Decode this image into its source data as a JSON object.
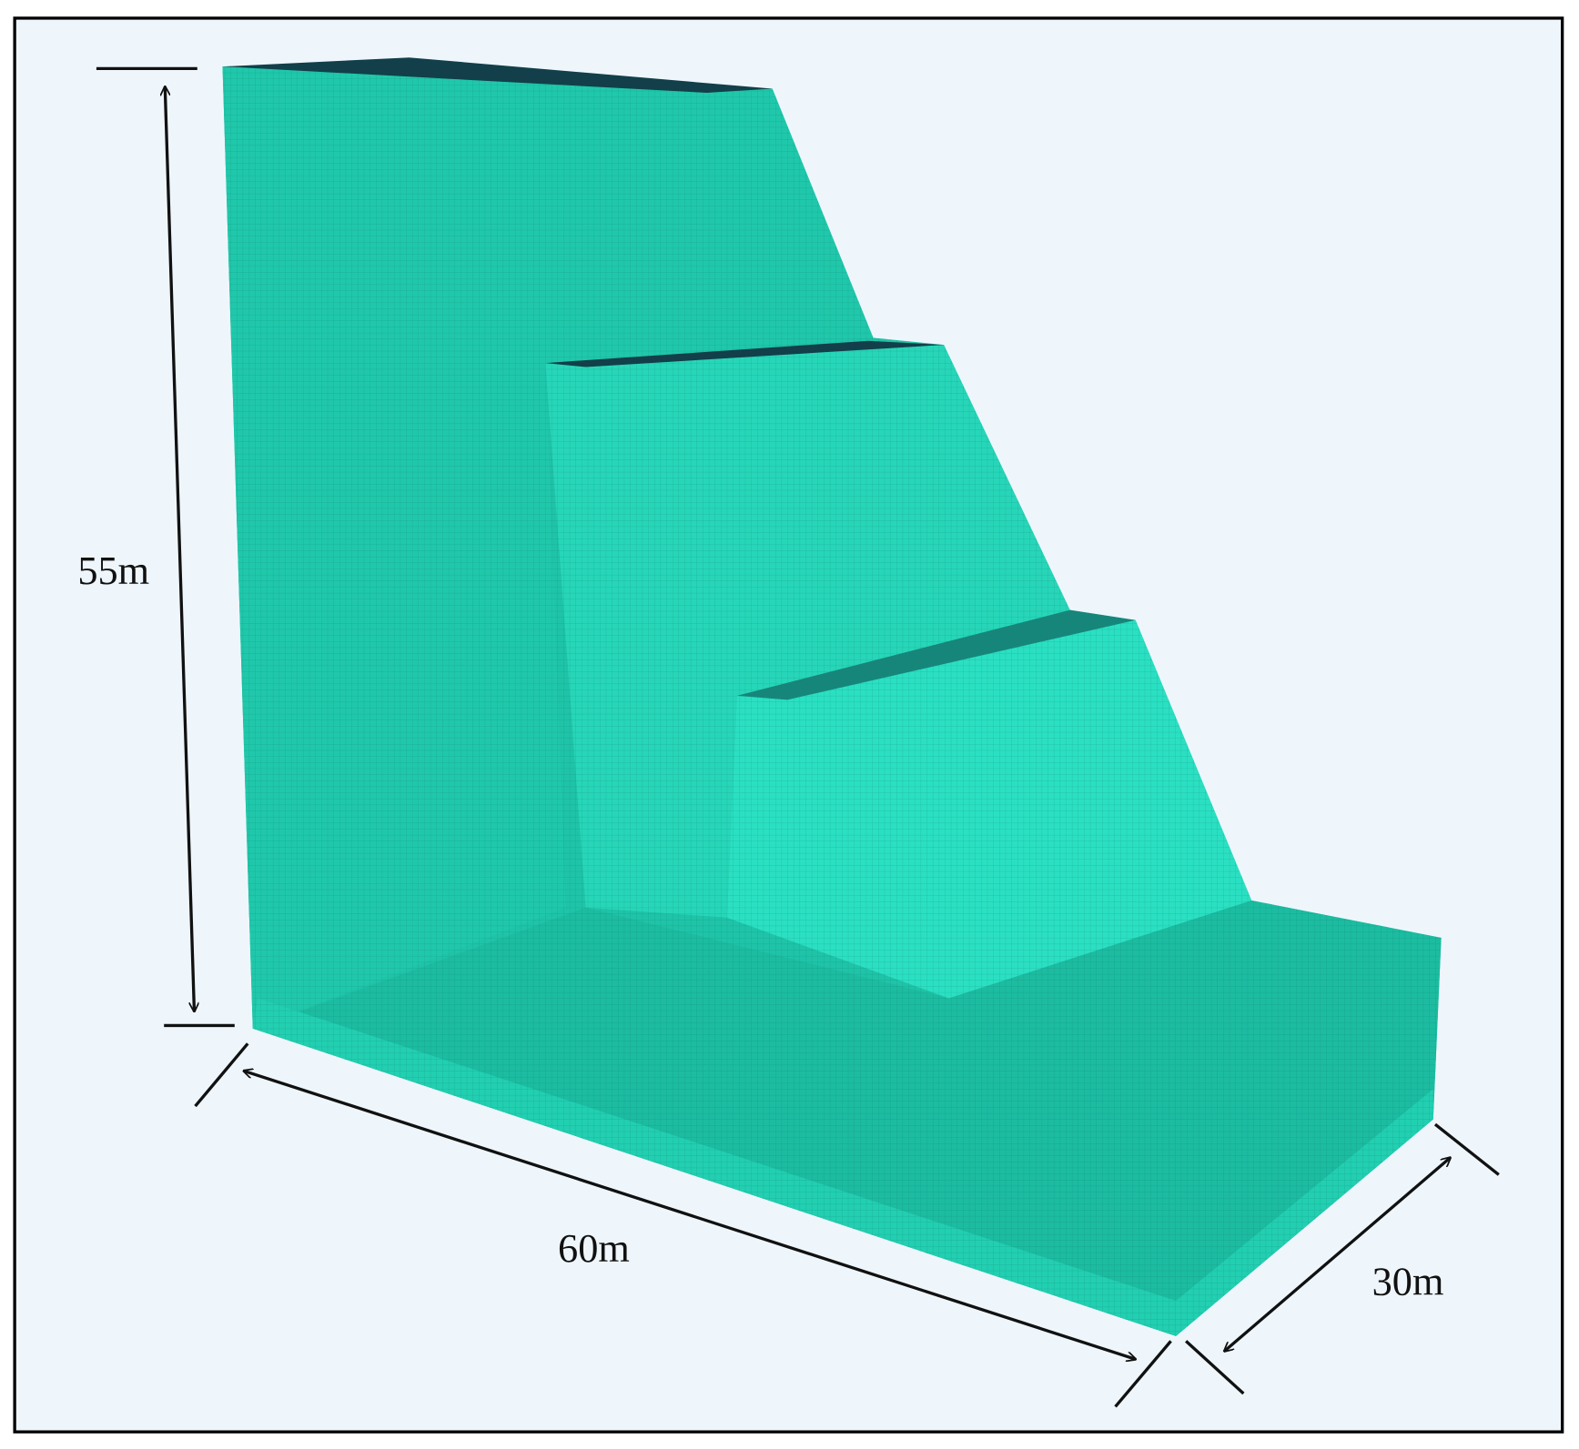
{
  "dimensions": {
    "height": "55m",
    "length": "60m",
    "width": "30m"
  }
}
